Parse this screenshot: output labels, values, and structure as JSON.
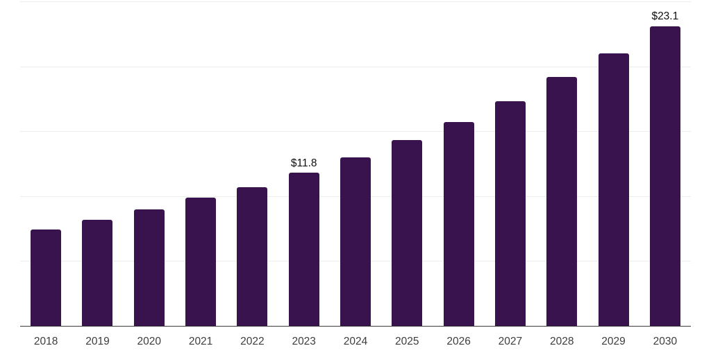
{
  "chart_data": {
    "type": "bar",
    "title": "",
    "xlabel": "",
    "ylabel": "",
    "categories": [
      "2018",
      "2019",
      "2020",
      "2021",
      "2022",
      "2023",
      "2024",
      "2025",
      "2026",
      "2027",
      "2028",
      "2029",
      "2030"
    ],
    "values": [
      7.4,
      8.2,
      9.0,
      9.9,
      10.7,
      11.8,
      13.0,
      14.3,
      15.7,
      17.3,
      19.2,
      21.0,
      23.1
    ],
    "annotations": [
      {
        "category": "2023",
        "text": "$11.8"
      },
      {
        "category": "2030",
        "text": "$23.1"
      }
    ],
    "ylim": [
      0,
      25
    ],
    "gridline_values": [
      5,
      10,
      15,
      20,
      25
    ],
    "grid": true,
    "legend": false,
    "y_axis_labels_shown": false
  },
  "style": {
    "bar_color": "#38134e",
    "grid_color": "#ededed",
    "axis_color": "#3a3a3a",
    "tick_label_color": "#3d3d3d",
    "annotation_color": "#0f0f0f",
    "background": "#ffffff"
  }
}
